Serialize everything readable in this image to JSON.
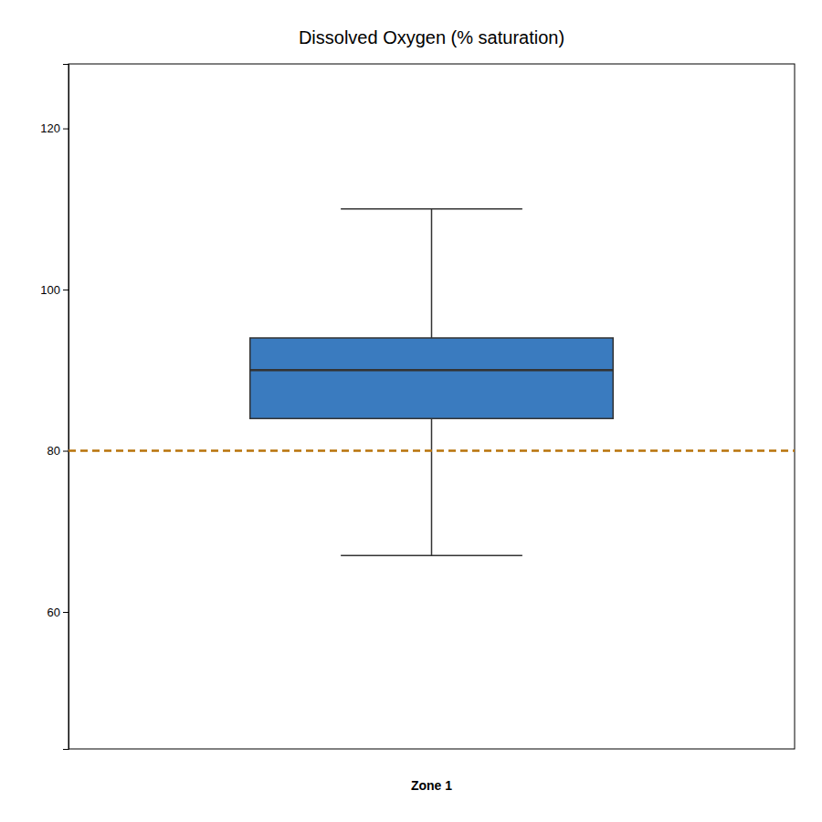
{
  "chart_data": {
    "type": "box",
    "title": "Dissolved Oxygen (% saturation)",
    "xlabel": "Zone 1",
    "q1": 84,
    "median": 90,
    "q3": 94,
    "whisker_low": 67,
    "whisker_high": 110,
    "color": "#3a7bbf",
    "reference_lines": [
      {
        "y": 80,
        "color": "#b8730a",
        "line_style": "dashed"
      }
    ],
    "ylim": [
      43,
      128
    ],
    "yticks": [
      60,
      80,
      100,
      120
    ],
    "grid": false,
    "tick_labels": "y"
  }
}
